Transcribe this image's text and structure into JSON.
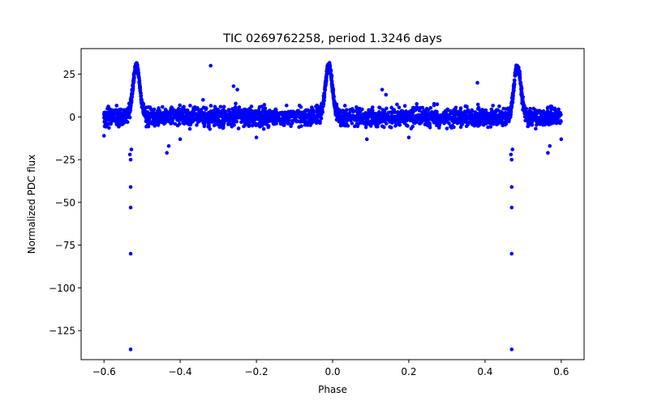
{
  "chart_data": {
    "type": "scatter",
    "title": "TIC 0269762258, period 1.3246 days",
    "xlabel": "Phase",
    "ylabel": "Normalized PDC flux",
    "xlim": [
      -0.66,
      0.66
    ],
    "ylim": [
      -142,
      40
    ],
    "xticks": [
      -0.6,
      -0.4,
      -0.2,
      0.0,
      0.2,
      0.4,
      0.6
    ],
    "xtick_labels": [
      "−0.6",
      "−0.4",
      "−0.2",
      "0.0",
      "0.2",
      "0.4",
      "0.6"
    ],
    "yticks": [
      25,
      0,
      -25,
      -50,
      -75,
      -100,
      -125
    ],
    "ytick_labels": [
      "25",
      "0",
      "−25",
      "−50",
      "−75",
      "−100",
      "−125"
    ],
    "marker_color": "#0000ff",
    "band": {
      "x_range": [
        -0.6,
        0.6
      ],
      "baseline": 0,
      "scatter_half_width": 6,
      "peaks": [
        {
          "x": -0.515,
          "height": 30,
          "width": 0.009
        },
        {
          "x": -0.01,
          "height": 30,
          "width": 0.009
        },
        {
          "x": 0.485,
          "height": 30,
          "width": 0.009
        }
      ]
    },
    "outliers": [
      {
        "x": -0.53,
        "y": -136
      },
      {
        "x": -0.53,
        "y": -80
      },
      {
        "x": -0.53,
        "y": -53
      },
      {
        "x": -0.53,
        "y": -41
      },
      {
        "x": -0.532,
        "y": -22
      },
      {
        "x": -0.528,
        "y": -19
      },
      {
        "x": -0.53,
        "y": -25
      },
      {
        "x": -0.435,
        "y": -21
      },
      {
        "x": -0.43,
        "y": -17
      },
      {
        "x": -0.32,
        "y": 30
      },
      {
        "x": -0.26,
        "y": 18
      },
      {
        "x": -0.25,
        "y": 16
      },
      {
        "x": -0.34,
        "y": 10
      },
      {
        "x": -0.4,
        "y": -13
      },
      {
        "x": -0.2,
        "y": -12
      },
      {
        "x": 0.13,
        "y": 16
      },
      {
        "x": 0.14,
        "y": 13
      },
      {
        "x": 0.09,
        "y": -13
      },
      {
        "x": 0.2,
        "y": -12
      },
      {
        "x": 0.38,
        "y": 20
      },
      {
        "x": 0.47,
        "y": -136
      },
      {
        "x": 0.47,
        "y": -80
      },
      {
        "x": 0.47,
        "y": -53
      },
      {
        "x": 0.47,
        "y": -41
      },
      {
        "x": 0.468,
        "y": -22
      },
      {
        "x": 0.472,
        "y": -19
      },
      {
        "x": 0.47,
        "y": -25
      },
      {
        "x": 0.565,
        "y": -21
      },
      {
        "x": 0.57,
        "y": -17
      },
      {
        "x": 0.6,
        "y": -13
      },
      {
        "x": -0.6,
        "y": -11
      }
    ]
  }
}
